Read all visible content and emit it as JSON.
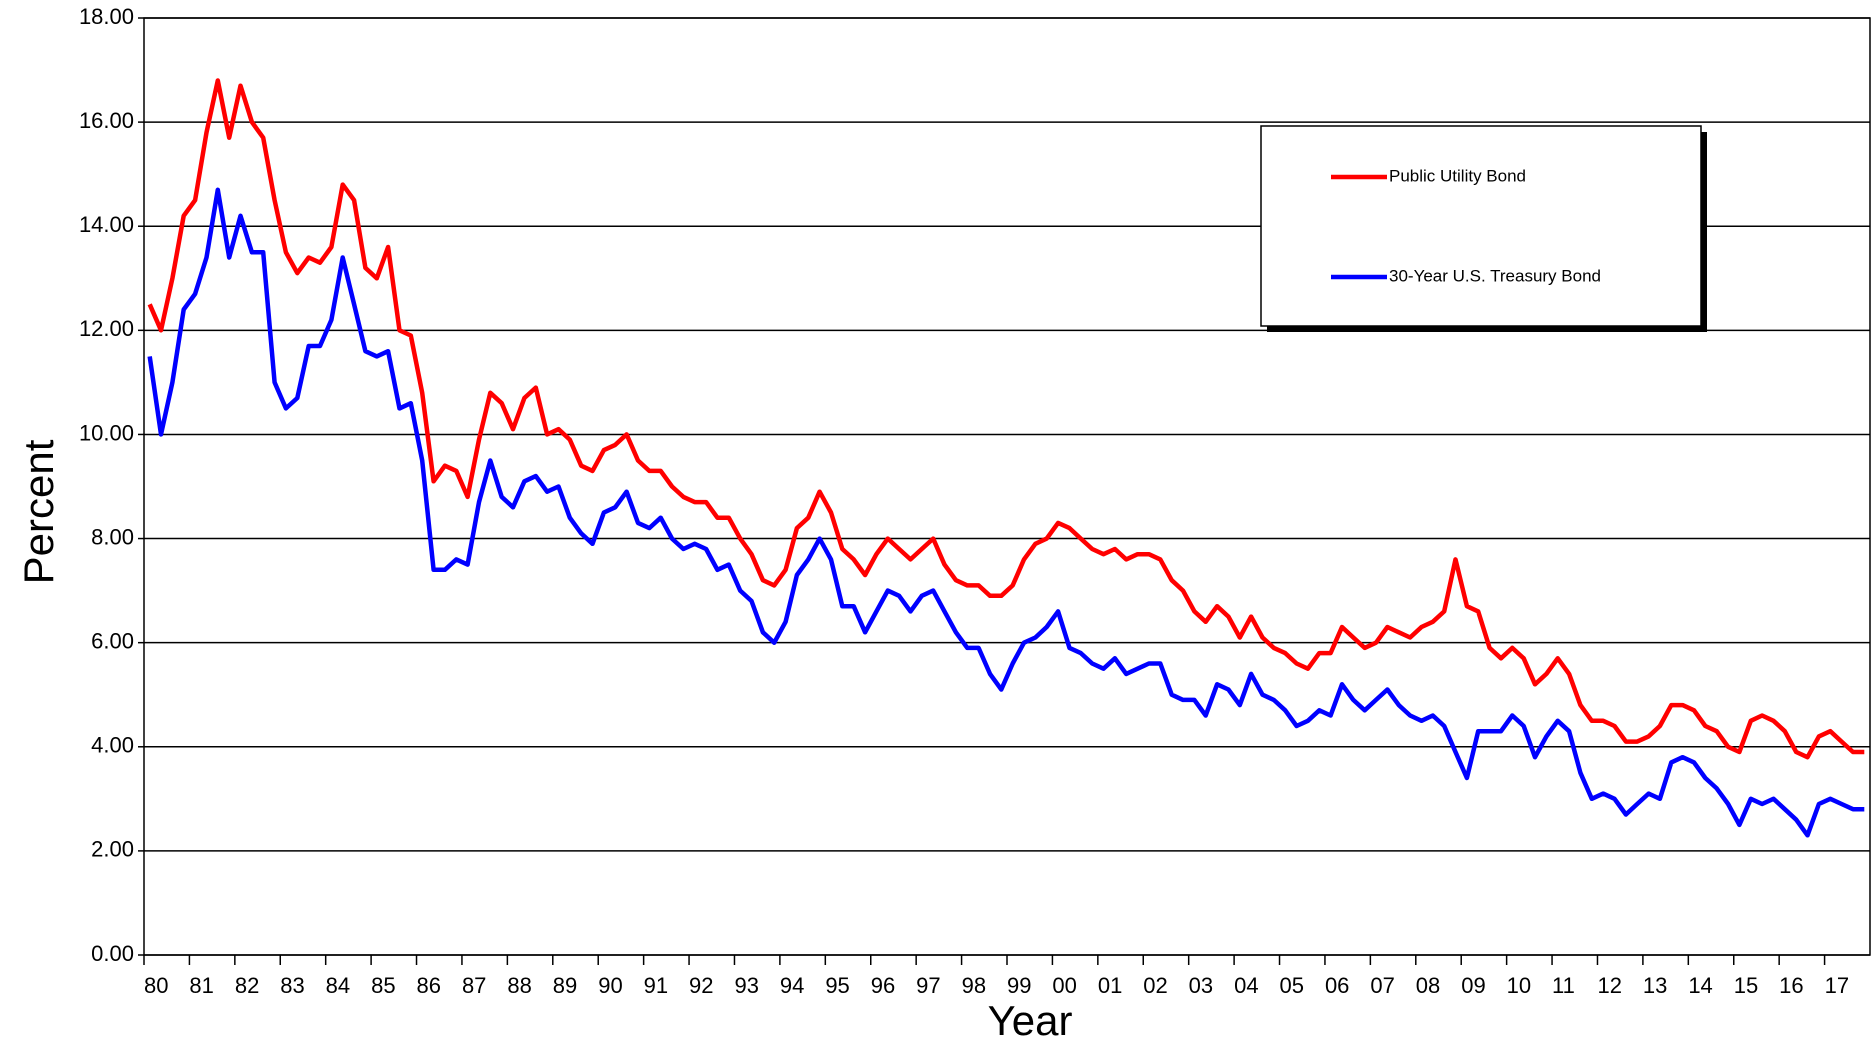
{
  "chart_data": {
    "type": "line",
    "xlabel": "Year",
    "ylabel": "Percent",
    "xlim": [
      1980,
      2018
    ],
    "ylim": [
      0,
      18
    ],
    "grid": true,
    "legend": "upper right",
    "yticks": [
      {
        "value": 0,
        "label": "0.00"
      },
      {
        "value": 2,
        "label": "2.00"
      },
      {
        "value": 4,
        "label": "4.00"
      },
      {
        "value": 6,
        "label": "6.00"
      },
      {
        "value": 8,
        "label": "8.00"
      },
      {
        "value": 10,
        "label": "10.00"
      },
      {
        "value": 12,
        "label": "12.00"
      },
      {
        "value": 14,
        "label": "14.00"
      },
      {
        "value": 16,
        "label": "16.00"
      },
      {
        "value": 18,
        "label": "18.00"
      }
    ],
    "xticks": [
      {
        "value": 1980,
        "label": "80"
      },
      {
        "value": 1981,
        "label": "81"
      },
      {
        "value": 1982,
        "label": "82"
      },
      {
        "value": 1983,
        "label": "83"
      },
      {
        "value": 1984,
        "label": "84"
      },
      {
        "value": 1985,
        "label": "85"
      },
      {
        "value": 1986,
        "label": "86"
      },
      {
        "value": 1987,
        "label": "87"
      },
      {
        "value": 1988,
        "label": "88"
      },
      {
        "value": 1989,
        "label": "89"
      },
      {
        "value": 1990,
        "label": "90"
      },
      {
        "value": 1991,
        "label": "91"
      },
      {
        "value": 1992,
        "label": "92"
      },
      {
        "value": 1993,
        "label": "93"
      },
      {
        "value": 1994,
        "label": "94"
      },
      {
        "value": 1995,
        "label": "95"
      },
      {
        "value": 1996,
        "label": "96"
      },
      {
        "value": 1997,
        "label": "97"
      },
      {
        "value": 1998,
        "label": "98"
      },
      {
        "value": 1999,
        "label": "99"
      },
      {
        "value": 2000,
        "label": "00"
      },
      {
        "value": 2001,
        "label": "01"
      },
      {
        "value": 2002,
        "label": "02"
      },
      {
        "value": 2003,
        "label": "03"
      },
      {
        "value": 2004,
        "label": "04"
      },
      {
        "value": 2005,
        "label": "05"
      },
      {
        "value": 2006,
        "label": "06"
      },
      {
        "value": 2007,
        "label": "07"
      },
      {
        "value": 2008,
        "label": "08"
      },
      {
        "value": 2009,
        "label": "09"
      },
      {
        "value": 2010,
        "label": "10"
      },
      {
        "value": 2011,
        "label": "11"
      },
      {
        "value": 2012,
        "label": "12"
      },
      {
        "value": 2013,
        "label": "13"
      },
      {
        "value": 2014,
        "label": "14"
      },
      {
        "value": 2015,
        "label": "15"
      },
      {
        "value": 2016,
        "label": "16"
      },
      {
        "value": 2017,
        "label": "17"
      }
    ],
    "x": [
      1980.125,
      1980.375,
      1980.625,
      1980.875,
      1981.125,
      1981.375,
      1981.625,
      1981.875,
      1982.125,
      1982.375,
      1982.625,
      1982.875,
      1983.125,
      1983.375,
      1983.625,
      1983.875,
      1984.125,
      1984.375,
      1984.625,
      1984.875,
      1985.125,
      1985.375,
      1985.625,
      1985.875,
      1986.125,
      1986.375,
      1986.625,
      1986.875,
      1987.125,
      1987.375,
      1987.625,
      1987.875,
      1988.125,
      1988.375,
      1988.625,
      1988.875,
      1989.125,
      1989.375,
      1989.625,
      1989.875,
      1990.125,
      1990.375,
      1990.625,
      1990.875,
      1991.125,
      1991.375,
      1991.625,
      1991.875,
      1992.125,
      1992.375,
      1992.625,
      1992.875,
      1993.125,
      1993.375,
      1993.625,
      1993.875,
      1994.125,
      1994.375,
      1994.625,
      1994.875,
      1995.125,
      1995.375,
      1995.625,
      1995.875,
      1996.125,
      1996.375,
      1996.625,
      1996.875,
      1997.125,
      1997.375,
      1997.625,
      1997.875,
      1998.125,
      1998.375,
      1998.625,
      1998.875,
      1999.125,
      1999.375,
      1999.625,
      1999.875,
      2000.125,
      2000.375,
      2000.625,
      2000.875,
      2001.125,
      2001.375,
      2001.625,
      2001.875,
      2002.125,
      2002.375,
      2002.625,
      2002.875,
      2003.125,
      2003.375,
      2003.625,
      2003.875,
      2004.125,
      2004.375,
      2004.625,
      2004.875,
      2005.125,
      2005.375,
      2005.625,
      2005.875,
      2006.125,
      2006.375,
      2006.625,
      2006.875,
      2007.125,
      2007.375,
      2007.625,
      2007.875,
      2008.125,
      2008.375,
      2008.625,
      2008.875,
      2009.125,
      2009.375,
      2009.625,
      2009.875,
      2010.125,
      2010.375,
      2010.625,
      2010.875,
      2011.125,
      2011.375,
      2011.625,
      2011.875,
      2012.125,
      2012.375,
      2012.625,
      2012.875,
      2013.125,
      2013.375,
      2013.625,
      2013.875,
      2014.125,
      2014.375,
      2014.625,
      2014.875,
      2015.125,
      2015.375,
      2015.625,
      2015.875,
      2016.125,
      2016.375,
      2016.625,
      2016.875,
      2017.125,
      2017.375,
      2017.625,
      2017.875
    ],
    "series": [
      {
        "name": "Public Utility Bond",
        "color": "#ff0000",
        "values": [
          12.5,
          12.0,
          13.0,
          14.2,
          14.5,
          15.8,
          16.8,
          15.7,
          16.7,
          16.0,
          15.7,
          14.5,
          13.5,
          13.1,
          13.4,
          13.3,
          13.6,
          14.8,
          14.5,
          13.2,
          13.0,
          13.6,
          12.0,
          11.9,
          10.8,
          9.1,
          9.4,
          9.3,
          8.8,
          9.9,
          10.8,
          10.6,
          10.1,
          10.7,
          10.9,
          10.0,
          10.1,
          9.9,
          9.4,
          9.3,
          9.7,
          9.8,
          10.0,
          9.5,
          9.3,
          9.3,
          9.0,
          8.8,
          8.7,
          8.7,
          8.4,
          8.4,
          8.0,
          7.7,
          7.2,
          7.1,
          7.4,
          8.2,
          8.4,
          8.9,
          8.5,
          7.8,
          7.6,
          7.3,
          7.7,
          8.0,
          7.8,
          7.6,
          7.8,
          8.0,
          7.5,
          7.2,
          7.1,
          7.1,
          6.9,
          6.9,
          7.1,
          7.6,
          7.9,
          8.0,
          8.3,
          8.2,
          8.0,
          7.8,
          7.7,
          7.8,
          7.6,
          7.7,
          7.7,
          7.6,
          7.2,
          7.0,
          6.6,
          6.4,
          6.7,
          6.5,
          6.1,
          6.5,
          6.1,
          5.9,
          5.8,
          5.6,
          5.5,
          5.8,
          5.8,
          6.3,
          6.1,
          5.9,
          6.0,
          6.3,
          6.2,
          6.1,
          6.3,
          6.4,
          6.6,
          7.6,
          6.7,
          6.6,
          5.9,
          5.7,
          5.9,
          5.7,
          5.2,
          5.4,
          5.7,
          5.4,
          4.8,
          4.5,
          4.5,
          4.4,
          4.1,
          4.1,
          4.2,
          4.4,
          4.8,
          4.8,
          4.7,
          4.4,
          4.3,
          4.0,
          3.9,
          4.5,
          4.6,
          4.5,
          4.3,
          3.9,
          3.8,
          4.2,
          4.3,
          4.1,
          3.9,
          3.9
        ]
      },
      {
        "name": "30-Year U.S. Treasury Bond",
        "color": "#0000ff",
        "values": [
          11.5,
          10.0,
          11.0,
          12.4,
          12.7,
          13.4,
          14.7,
          13.4,
          14.2,
          13.5,
          13.5,
          11.0,
          10.5,
          10.7,
          11.7,
          11.7,
          12.2,
          13.4,
          12.5,
          11.6,
          11.5,
          11.6,
          10.5,
          10.6,
          9.5,
          7.4,
          7.4,
          7.6,
          7.5,
          8.7,
          9.5,
          8.8,
          8.6,
          9.1,
          9.2,
          8.9,
          9.0,
          8.4,
          8.1,
          7.9,
          8.5,
          8.6,
          8.9,
          8.3,
          8.2,
          8.4,
          8.0,
          7.8,
          7.9,
          7.8,
          7.4,
          7.5,
          7.0,
          6.8,
          6.2,
          6.0,
          6.4,
          7.3,
          7.6,
          8.0,
          7.6,
          6.7,
          6.7,
          6.2,
          6.6,
          7.0,
          6.9,
          6.6,
          6.9,
          7.0,
          6.6,
          6.2,
          5.9,
          5.9,
          5.4,
          5.1,
          5.6,
          6.0,
          6.1,
          6.3,
          6.6,
          5.9,
          5.8,
          5.6,
          5.5,
          5.7,
          5.4,
          5.5,
          5.6,
          5.6,
          5.0,
          4.9,
          4.9,
          4.6,
          5.2,
          5.1,
          4.8,
          5.4,
          5.0,
          4.9,
          4.7,
          4.4,
          4.5,
          4.7,
          4.6,
          5.2,
          4.9,
          4.7,
          4.9,
          5.1,
          4.8,
          4.6,
          4.5,
          4.6,
          4.4,
          3.9,
          3.4,
          4.3,
          4.3,
          4.3,
          4.6,
          4.4,
          3.8,
          4.2,
          4.5,
          4.3,
          3.5,
          3.0,
          3.1,
          3.0,
          2.7,
          2.9,
          3.1,
          3.0,
          3.7,
          3.8,
          3.7,
          3.4,
          3.2,
          2.9,
          2.5,
          3.0,
          2.9,
          3.0,
          2.8,
          2.6,
          2.3,
          2.9,
          3.0,
          2.9,
          2.8,
          2.8
        ]
      }
    ]
  }
}
